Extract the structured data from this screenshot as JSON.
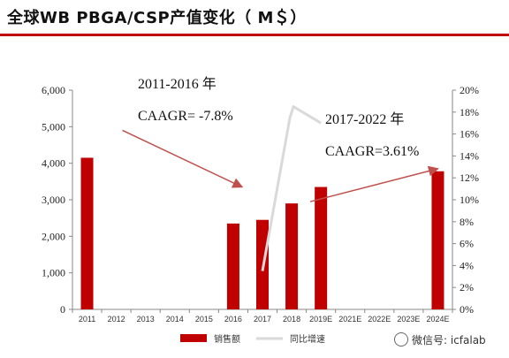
{
  "page": {
    "title": "全球WB PBGA/CSP产值变化（ M＄）"
  },
  "watermark": {
    "text": "微信号: icfalab",
    "icon": "wechat-icon"
  },
  "chart_data": {
    "type": "bar",
    "categories": [
      "2011",
      "2012",
      "2013",
      "2014",
      "2015",
      "2016",
      "2017",
      "2018",
      "2019E",
      "2021E",
      "2022E",
      "2023E",
      "2024E"
    ],
    "series": [
      {
        "name": "销售额",
        "axis": "left",
        "color": "#c00000",
        "values": [
          4150,
          null,
          null,
          null,
          null,
          2350,
          2450,
          2900,
          3350,
          null,
          null,
          null,
          3780
        ]
      },
      {
        "name": "同比增速",
        "axis": "right",
        "type": "line",
        "color": "#d9d9d9",
        "points": [
          [
            "2017",
            0.035
          ],
          [
            "2018",
            0.175
          ],
          [
            "2018",
            0.185
          ],
          [
            "2019E",
            0.17
          ]
        ]
      }
    ],
    "yLeft": {
      "min": 0,
      "max": 6000,
      "ticks": [
        "0",
        "1,000",
        "2,000",
        "3,000",
        "4,000",
        "5,000",
        "6,000"
      ]
    },
    "yRight": {
      "min": 0,
      "max": 0.2,
      "ticks": [
        "0%",
        "2%",
        "4%",
        "6%",
        "8%",
        "10%",
        "12%",
        "14%",
        "16%",
        "18%",
        "20%"
      ]
    },
    "annotations": [
      {
        "lines": [
          "2011-2016 年",
          "CAAGR= -7.8%"
        ],
        "arrow_from": [
          "2011",
          4900
        ],
        "arrow_to": [
          "2016",
          3350
        ]
      },
      {
        "lines": [
          "2017-2022 年",
          "CAAGR=3.61%"
        ],
        "arrow_from": [
          "2019E",
          2950
        ],
        "arrow_to": [
          "2024E",
          3850
        ]
      }
    ],
    "legend": {
      "position": "bottom"
    },
    "grid": false
  }
}
